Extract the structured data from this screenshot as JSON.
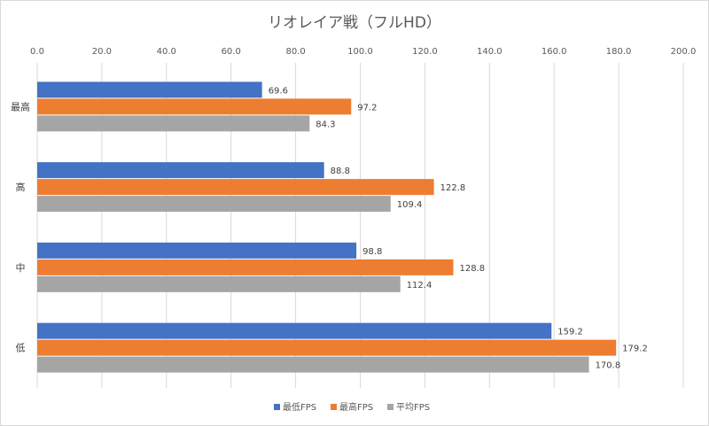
{
  "chart_data": {
    "type": "bar",
    "orientation": "horizontal",
    "title": "リオレイア戦（フルHD）",
    "xlabel": "",
    "ylabel": "",
    "xlim": [
      0,
      200
    ],
    "x_ticks": [
      "0.0",
      "20.0",
      "40.0",
      "60.0",
      "80.0",
      "100.0",
      "120.0",
      "140.0",
      "160.0",
      "180.0",
      "200.0"
    ],
    "x_axis_position": "top",
    "grid": true,
    "legend_position": "bottom",
    "categories": [
      "最高",
      "高",
      "中",
      "低"
    ],
    "series": [
      {
        "name": "最低FPS",
        "color": "#4472c4",
        "values": [
          69.6,
          88.8,
          98.8,
          159.2
        ],
        "labels": [
          "69.6",
          "88.8",
          "98.8",
          "159.2"
        ]
      },
      {
        "name": "最高FPS",
        "color": "#ed7d31",
        "values": [
          97.2,
          122.8,
          128.8,
          179.2
        ],
        "labels": [
          "97.2",
          "122.8",
          "128.8",
          "179.2"
        ]
      },
      {
        "name": "平均FPS",
        "color": "#a5a5a5",
        "values": [
          84.3,
          109.4,
          112.4,
          170.8
        ],
        "labels": [
          "84.3",
          "109.4",
          "112.4",
          "170.8"
        ]
      }
    ]
  }
}
